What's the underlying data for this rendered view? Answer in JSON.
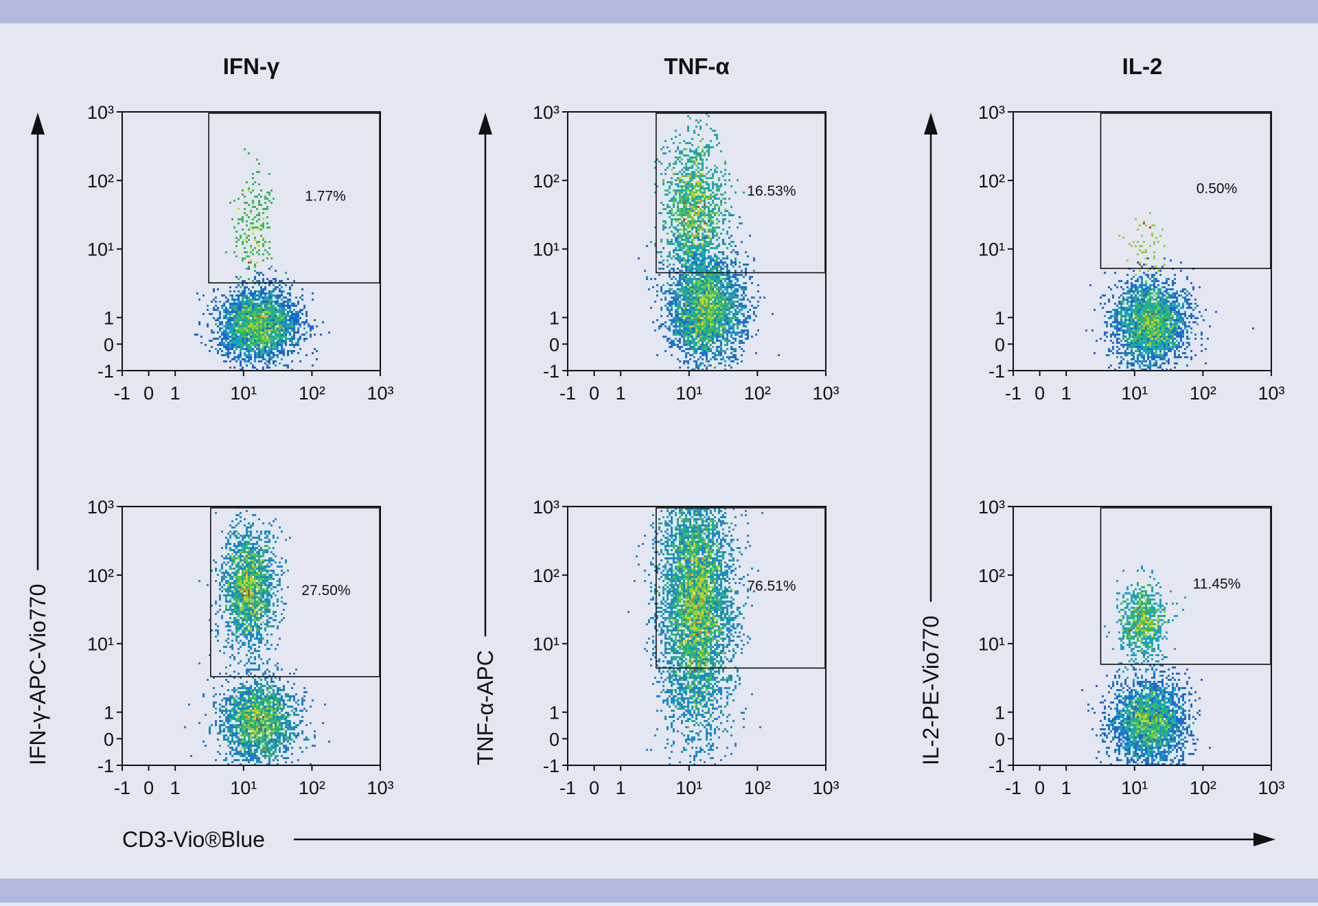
{
  "columns": [
    {
      "title": "IFN-γ",
      "ylabel": "IFN-γ-APC-Vio770"
    },
    {
      "title": "TNF-α",
      "ylabel": "TNF-α-APC"
    },
    {
      "title": "IL-2",
      "ylabel": "IL-2-PE-Vio770"
    }
  ],
  "xlabel": "CD3-Vio®Blue",
  "chart_data": [
    {
      "type": "density",
      "xscale": "biexponential",
      "yscale": "biexponential",
      "xlim": [
        -1,
        1000
      ],
      "ylim": [
        -1,
        1000
      ],
      "xticks": [
        -1,
        0,
        1,
        {
          "value": 10,
          "label": "10¹"
        },
        {
          "value": 100,
          "label": "10²"
        },
        {
          "value": 1000,
          "label": "10³"
        }
      ],
      "yticks": [
        -1,
        0,
        1,
        {
          "value": 10,
          "label": "10¹"
        },
        {
          "value": 100,
          "label": "10²"
        },
        {
          "value": 1000,
          "label": "10³"
        }
      ],
      "gate": {
        "x": [
          3.1,
          1000
        ],
        "y": [
          3.2,
          1000
        ]
      },
      "values": [
        1.77
      ],
      "value_labels": [
        "1.77%"
      ],
      "clusters": [
        {
          "x": 16.6,
          "y": 0.7,
          "xrange": [
            4,
            60
          ],
          "yrange": [
            -0.8,
            2.3
          ],
          "n": 3000
        },
        {
          "x": 14,
          "y": 20,
          "xrange": [
            8,
            30
          ],
          "yrange": [
            3,
            150
          ],
          "n": 200
        }
      ]
    },
    {
      "type": "density",
      "xscale": "biexponential",
      "yscale": "biexponential",
      "xlim": [
        -1,
        1000
      ],
      "ylim": [
        -1,
        1000
      ],
      "xticks": [
        -1,
        0,
        1,
        {
          "value": 10,
          "label": "10¹"
        },
        {
          "value": 100,
          "label": "10²"
        },
        {
          "value": 1000,
          "label": "10³"
        }
      ],
      "yticks": [
        -1,
        0,
        1,
        {
          "value": 10,
          "label": "10¹"
        },
        {
          "value": 100,
          "label": "10²"
        },
        {
          "value": 1000,
          "label": "10³"
        }
      ],
      "gate": {
        "x": [
          3.3,
          1000
        ],
        "y": [
          4.5,
          1000
        ]
      },
      "values": [
        16.53
      ],
      "value_labels": [
        "16.53%"
      ],
      "clusters": [
        {
          "x": 18,
          "y": 1.4,
          "xrange": [
            5,
            60
          ],
          "yrange": [
            -1,
            6
          ],
          "n": 3500
        },
        {
          "x": 12,
          "y": 40,
          "xrange": [
            5,
            40
          ],
          "yrange": [
            3,
            400
          ],
          "n": 1400
        }
      ]
    },
    {
      "type": "density",
      "xscale": "biexponential",
      "yscale": "biexponential",
      "xlim": [
        -1,
        1000
      ],
      "ylim": [
        -1,
        1000
      ],
      "xticks": [
        -1,
        0,
        1,
        {
          "value": 10,
          "label": "10¹"
        },
        {
          "value": 100,
          "label": "10²"
        },
        {
          "value": 1000,
          "label": "10³"
        }
      ],
      "yticks": [
        -1,
        0,
        1,
        {
          "value": 10,
          "label": "10¹"
        },
        {
          "value": 100,
          "label": "10²"
        },
        {
          "value": 1000,
          "label": "10³"
        }
      ],
      "gate": {
        "x": [
          3.2,
          1000
        ],
        "y": [
          5.2,
          1000
        ]
      },
      "values": [
        0.5
      ],
      "value_labels": [
        "0.50%"
      ],
      "clusters": [
        {
          "x": 17,
          "y": 0.78,
          "xrange": [
            4,
            50
          ],
          "yrange": [
            -0.8,
            3.5
          ],
          "n": 2800
        },
        {
          "x": 15,
          "y": 10,
          "xrange": [
            8,
            30
          ],
          "yrange": [
            3,
            30
          ],
          "n": 60
        }
      ]
    },
    {
      "type": "density",
      "xscale": "biexponential",
      "yscale": "biexponential",
      "xlim": [
        -1,
        1000
      ],
      "ylim": [
        -1,
        1000
      ],
      "xticks": [
        -1,
        0,
        1,
        {
          "value": 10,
          "label": "10¹"
        },
        {
          "value": 100,
          "label": "10²"
        },
        {
          "value": 1000,
          "label": "10³"
        }
      ],
      "yticks": [
        -1,
        0,
        1,
        {
          "value": 10,
          "label": "10¹"
        },
        {
          "value": 100,
          "label": "10²"
        },
        {
          "value": 1000,
          "label": "10³"
        }
      ],
      "gate": {
        "x": [
          3.3,
          1000
        ],
        "y": [
          3.3,
          1000
        ]
      },
      "values": [
        27.5
      ],
      "value_labels": [
        "27.50%"
      ],
      "clusters": [
        {
          "x": 17,
          "y": 0.65,
          "xrange": [
            4,
            50
          ],
          "yrange": [
            -1,
            3
          ],
          "n": 2200
        },
        {
          "x": 12,
          "y": 65,
          "xrange": [
            5,
            30
          ],
          "yrange": [
            5,
            250
          ],
          "n": 2000
        }
      ]
    },
    {
      "type": "density",
      "xscale": "biexponential",
      "yscale": "biexponential",
      "xlim": [
        -1,
        1000
      ],
      "ylim": [
        -1,
        1000
      ],
      "xticks": [
        -1,
        0,
        1,
        {
          "value": 10,
          "label": "10¹"
        },
        {
          "value": 100,
          "label": "10²"
        },
        {
          "value": 1000,
          "label": "10³"
        }
      ],
      "yticks": [
        -1,
        0,
        1,
        {
          "value": 10,
          "label": "10¹"
        },
        {
          "value": 100,
          "label": "10²"
        },
        {
          "value": 1000,
          "label": "10³"
        }
      ],
      "gate": {
        "x": [
          3.3,
          1000
        ],
        "y": [
          4.4,
          1000
        ]
      },
      "values": [
        76.51
      ],
      "value_labels": [
        "76.51%"
      ],
      "clusters": [
        {
          "x": 13,
          "y": 36,
          "xrange": [
            4,
            45
          ],
          "yrange": [
            -1,
            700
          ],
          "n": 5500
        }
      ]
    },
    {
      "type": "density",
      "xscale": "biexponential",
      "yscale": "biexponential",
      "xlim": [
        -1,
        1000
      ],
      "ylim": [
        -1,
        1000
      ],
      "xticks": [
        -1,
        0,
        1,
        {
          "value": 10,
          "label": "10¹"
        },
        {
          "value": 100,
          "label": "10²"
        },
        {
          "value": 1000,
          "label": "10³"
        }
      ],
      "yticks": [
        -1,
        0,
        1,
        {
          "value": 10,
          "label": "10¹"
        },
        {
          "value": 100,
          "label": "10²"
        },
        {
          "value": 1000,
          "label": "10³"
        }
      ],
      "gate": {
        "x": [
          3.2,
          1000
        ],
        "y": [
          5.0,
          1000
        ]
      },
      "values": [
        11.45
      ],
      "value_labels": [
        "11.45%"
      ],
      "clusters": [
        {
          "x": 16,
          "y": 0.6,
          "xrange": [
            4,
            50
          ],
          "yrange": [
            -1,
            3
          ],
          "n": 2600
        },
        {
          "x": 13,
          "y": 20,
          "xrange": [
            6,
            30
          ],
          "yrange": [
            5,
            60
          ],
          "n": 800
        }
      ]
    }
  ]
}
